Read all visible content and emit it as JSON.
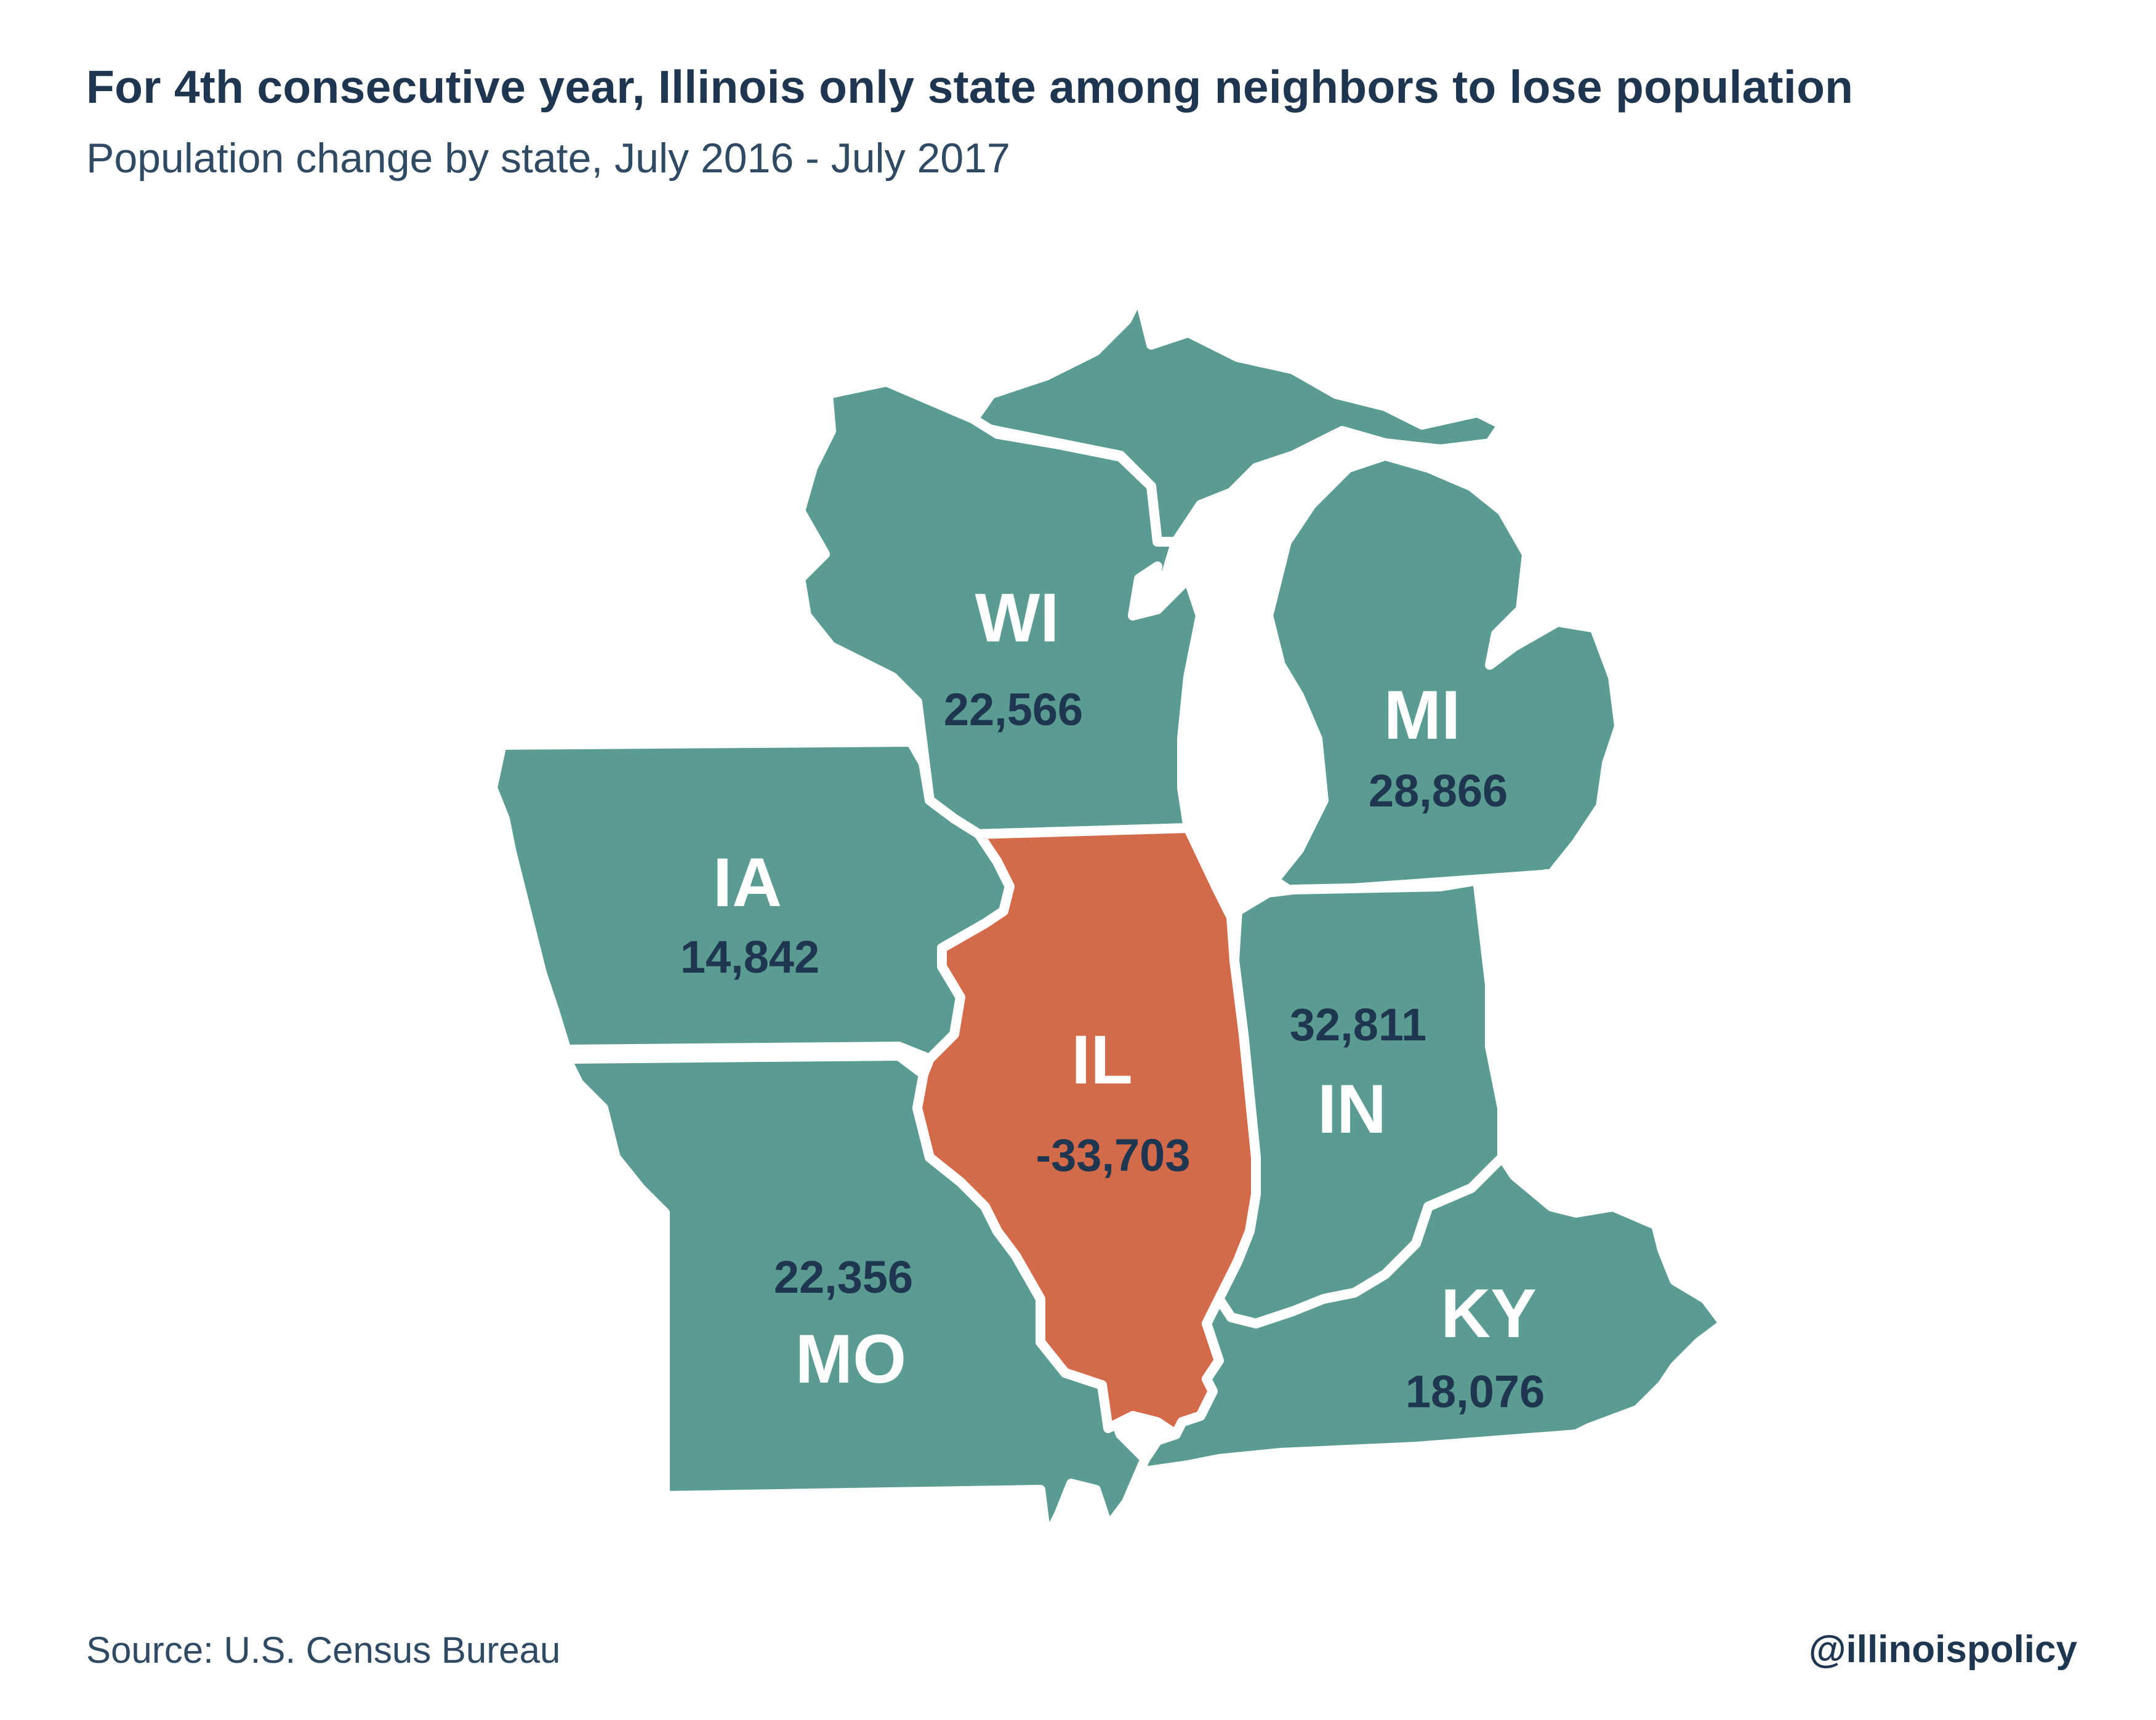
{
  "header": {
    "title": "For 4th consecutive year, Illinois only state among neighbors to lose population",
    "subtitle": "Population change by state, July 2016 - July 2017"
  },
  "footer": {
    "source": "Source: U.S. Census Bureau",
    "handle": "@illinoispolicy"
  },
  "colors": {
    "neighbor_fill": "#5a9b92",
    "illinois_fill": "#d36b4a",
    "border": "#ffffff",
    "label_value": "#1f3650"
  },
  "states": {
    "WI": {
      "abbr": "WI",
      "value": "22,566"
    },
    "MI": {
      "abbr": "MI",
      "value": "28,866"
    },
    "IA": {
      "abbr": "IA",
      "value": "14,842"
    },
    "IL": {
      "abbr": "IL",
      "value": "-33,703"
    },
    "IN": {
      "abbr": "IN",
      "value": "32,811"
    },
    "MO": {
      "abbr": "MO",
      "value": "22,356"
    },
    "KY": {
      "abbr": "KY",
      "value": "18,076"
    }
  }
}
